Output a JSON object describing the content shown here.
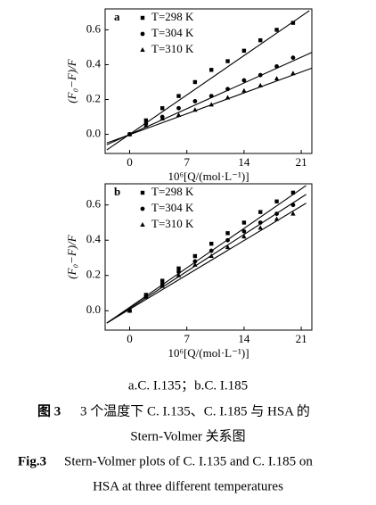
{
  "chart_data": [
    {
      "type": "scatter",
      "panel_label": "a",
      "x": [
        0,
        2,
        4,
        6,
        8,
        10,
        12,
        14,
        16,
        18,
        20
      ],
      "xlabel": "10⁶[Q/(mol·L⁻¹)]",
      "ylabel": "(F₀−F)/F",
      "xlim": [
        -3,
        22.3
      ],
      "ylim": [
        -0.11,
        0.72
      ],
      "xticks": [
        0,
        7,
        14,
        21
      ],
      "yticks": [
        {
          "value": 0,
          "label": "0.0"
        },
        0.2,
        0.4,
        0.6
      ],
      "series": [
        {
          "name": "T=298 K",
          "marker": "square",
          "color": "#000000",
          "values": [
            0,
            0.08,
            0.15,
            0.22,
            0.3,
            0.37,
            0.42,
            0.48,
            0.54,
            0.6,
            0.64
          ],
          "fit": {
            "x": [
              -2.8,
              22
            ],
            "y": [
              -0.09,
              0.71
            ]
          }
        },
        {
          "name": "T=304 K",
          "marker": "circle",
          "color": "#000000",
          "values": [
            0,
            0.06,
            0.1,
            0.15,
            0.19,
            0.22,
            0.26,
            0.31,
            0.34,
            0.39,
            0.44
          ],
          "fit": {
            "x": [
              -2.8,
              22.3
            ],
            "y": [
              -0.06,
              0.47
            ]
          }
        },
        {
          "name": "T=310 K",
          "marker": "triangle",
          "color": "#000000",
          "values": [
            0,
            0.05,
            0.09,
            0.11,
            0.14,
            0.17,
            0.21,
            0.25,
            0.28,
            0.32,
            0.35
          ],
          "fit": {
            "x": [
              -2.8,
              22.3
            ],
            "y": [
              -0.05,
              0.38
            ]
          }
        }
      ]
    },
    {
      "type": "scatter",
      "panel_label": "b",
      "x": [
        0,
        2,
        4,
        6,
        8,
        10,
        12,
        14,
        16,
        18,
        20
      ],
      "xlabel": "10⁶[Q/(mol·L⁻¹)]",
      "ylabel": "(F₀−F)/F",
      "xlim": [
        -3,
        22.3
      ],
      "ylim": [
        -0.11,
        0.72
      ],
      "xticks": [
        0,
        7,
        14,
        21
      ],
      "yticks": [
        {
          "value": 0,
          "label": "0.0"
        },
        0.2,
        0.4,
        0.6
      ],
      "series": [
        {
          "name": "T=298 K",
          "marker": "square",
          "color": "#000000",
          "values": [
            0,
            0.09,
            0.17,
            0.24,
            0.31,
            0.38,
            0.44,
            0.5,
            0.56,
            0.62,
            0.67
          ],
          "fit": {
            "x": [
              -2.8,
              21.6
            ],
            "y": [
              -0.07,
              0.71
            ]
          }
        },
        {
          "name": "T=304 K",
          "marker": "circle",
          "color": "#000000",
          "values": [
            0,
            0.08,
            0.15,
            0.22,
            0.28,
            0.34,
            0.4,
            0.45,
            0.5,
            0.55,
            0.6
          ],
          "fit": {
            "x": [
              -2.8,
              21.6
            ],
            "y": [
              -0.07,
              0.66
            ]
          }
        },
        {
          "name": "T=310 K",
          "marker": "triangle",
          "color": "#000000",
          "values": [
            0,
            0.08,
            0.14,
            0.2,
            0.26,
            0.31,
            0.36,
            0.42,
            0.47,
            0.52,
            0.55
          ],
          "fit": {
            "x": [
              -2.8,
              21.6
            ],
            "y": [
              -0.07,
              0.61
            ]
          }
        }
      ]
    }
  ],
  "caption": {
    "sub": "a.C. I.135；b.C. I.185",
    "cn_label": "图 3",
    "cn_line1": "3 个温度下 C. I.135、C. I.185 与 HSA 的",
    "cn_line2": "Stern-Volmer 关系图",
    "en_label": "Fig.3",
    "en_line1": "Stern-Volmer plots of C. I.135 and C. I.185 on",
    "en_line2": "HSA at three different temperatures"
  }
}
